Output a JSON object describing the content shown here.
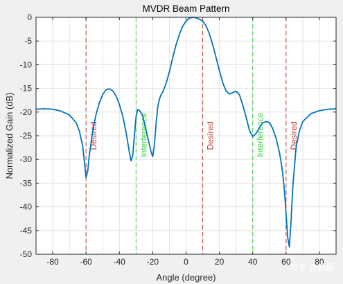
{
  "colors": {
    "figure_bg": "#f0f0f0",
    "axes_bg": "#ffffff",
    "grid": "#e2e2e2",
    "curve": "#0072bd",
    "desired": "#c0392b",
    "interference": "#3ccf3c",
    "axis": "#262626"
  },
  "watermark": "知乎 @云烟",
  "chart_data": {
    "type": "line",
    "title": "MVDR Beam Pattern",
    "xlabel": "Angle (degree)",
    "ylabel": "Normalized Gain (dB)",
    "xlim": [
      -90,
      90
    ],
    "ylim": [
      -50,
      0
    ],
    "xticks": [
      -80,
      -60,
      -40,
      -20,
      0,
      20,
      40,
      60,
      80
    ],
    "yticks": [
      0,
      -5,
      -10,
      -15,
      -20,
      -25,
      -30,
      -35,
      -40,
      -45,
      -50
    ],
    "grid": true,
    "series": [
      {
        "name": "",
        "x": [
          -90,
          -85,
          -80,
          -75,
          -70,
          -66,
          -64,
          -62,
          -61,
          -60,
          -59,
          -58,
          -56,
          -54,
          -52,
          -50,
          -48,
          -46,
          -44,
          -42,
          -40,
          -38,
          -36,
          -34,
          -33,
          -32,
          -31,
          -30,
          -29,
          -28,
          -26,
          -24,
          -22,
          -21,
          -20,
          -19,
          -18,
          -17,
          -16,
          -15,
          -14,
          -12,
          -10,
          -8,
          -6,
          -4,
          -2,
          0,
          2,
          4,
          6,
          8,
          10,
          12,
          14,
          16,
          18,
          20,
          22,
          24,
          26,
          28,
          30,
          32,
          34,
          36,
          38,
          40,
          42,
          44,
          46,
          48,
          50,
          52,
          54,
          56,
          57,
          58,
          59,
          60,
          61,
          62,
          63,
          64,
          66,
          68,
          70,
          75,
          80,
          85,
          90
        ],
        "y": [
          -19.4,
          -19.3,
          -19.4,
          -19.8,
          -20.6,
          -22.2,
          -24.0,
          -27.2,
          -30.5,
          -33.8,
          -32.5,
          -29.0,
          -24.0,
          -20.5,
          -18.0,
          -16.3,
          -15.3,
          -15.1,
          -15.5,
          -16.6,
          -18.4,
          -20.8,
          -24.2,
          -28.5,
          -30.3,
          -29.2,
          -25.0,
          -21.0,
          -19.5,
          -19.6,
          -20.8,
          -23.8,
          -26.8,
          -28.4,
          -29.4,
          -27.0,
          -22.5,
          -19.0,
          -17.3,
          -16.3,
          -15.8,
          -14.0,
          -11.5,
          -8.5,
          -5.8,
          -3.6,
          -1.9,
          -0.8,
          -0.2,
          0.0,
          -0.1,
          -0.4,
          -0.8,
          -1.8,
          -3.5,
          -5.8,
          -8.5,
          -11.2,
          -13.8,
          -15.5,
          -16.2,
          -15.9,
          -15.6,
          -16.3,
          -18.5,
          -21.0,
          -23.8,
          -25.2,
          -24.5,
          -23.3,
          -22.3,
          -22.0,
          -22.2,
          -23.5,
          -25.5,
          -28.5,
          -30.5,
          -33.0,
          -36.5,
          -41.5,
          -46.5,
          -48.5,
          -43.0,
          -36.0,
          -27.5,
          -24.0,
          -22.0,
          -20.3,
          -19.7,
          -19.4,
          -19.3
        ]
      }
    ],
    "annotations": [
      {
        "text": "Desired",
        "x": -60,
        "kind": "desired"
      },
      {
        "text": "Interference",
        "x": -30,
        "kind": "interference"
      },
      {
        "text": "Desired",
        "x": 10,
        "kind": "desired"
      },
      {
        "text": "Interference",
        "x": 40,
        "kind": "interference"
      },
      {
        "text": "Desired",
        "x": 60,
        "kind": "desired"
      }
    ]
  }
}
